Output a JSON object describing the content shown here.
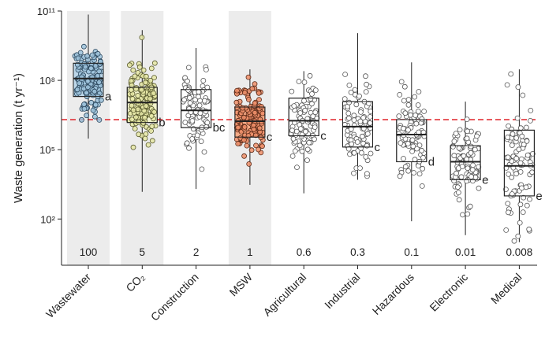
{
  "chart_data": {
    "type": "box",
    "ylabel": "Waste generation (t yr⁻¹)",
    "yscale": "log",
    "ylim": [
      1,
      100000000000
    ],
    "yticks": [
      {
        "value": 100,
        "label": "10²"
      },
      {
        "value": 100000,
        "label": "10⁵"
      },
      {
        "value": 100000000,
        "label": "10⁸"
      },
      {
        "value": 100000000000,
        "label": "10¹¹"
      }
    ],
    "reference_line": {
      "value": 2000000,
      "color": "#e0232a",
      "style": "dashed"
    },
    "categories": [
      {
        "label": "Wastewater",
        "ratio": "100",
        "letter": "a",
        "shaded": true,
        "fill": "#9ec3dc",
        "box_fill": "#bcd6e8",
        "edge": "#2e4a60",
        "filled_points": true,
        "whisker_low": 300000,
        "q1": 20000000,
        "median": 120000000,
        "q3": 550000000,
        "whisker_high": 70000000000
      },
      {
        "label": "CO₂",
        "ratio": "5",
        "letter": "b",
        "shaded": true,
        "fill": "#e6e8a6",
        "box_fill": "#f2f3cc",
        "edge": "#5a5b30",
        "filled_points": true,
        "whisker_low": 1500,
        "q1": 1500000,
        "median": 11000000,
        "q3": 50000000,
        "whisker_high": 15000000000
      },
      {
        "label": "Construction",
        "ratio": "2",
        "letter": "bc",
        "shaded": false,
        "fill": "#ffffff",
        "box_fill": "#ffffff",
        "edge": "#333333",
        "filled_points": false,
        "whisker_low": 2000,
        "q1": 900000,
        "median": 5000000,
        "q3": 40000000,
        "whisker_high": 2500000000
      },
      {
        "label": "MSW",
        "ratio": "1",
        "letter": "c",
        "shaded": true,
        "fill": "#ef8f6a",
        "box_fill": "#f4a985",
        "edge": "#5a2a18",
        "filled_points": true,
        "whisker_low": 3000,
        "q1": 350000,
        "median": 1700000,
        "q3": 7000000,
        "whisker_high": 300000000
      },
      {
        "label": "Agricultural",
        "ratio": "0.6",
        "letter": "c",
        "shaded": false,
        "fill": "#ffffff",
        "box_fill": "#ffffff",
        "edge": "#333333",
        "filled_points": false,
        "whisker_low": 1300,
        "q1": 400000,
        "median": 1800000,
        "q3": 17000000,
        "whisker_high": 250000000
      },
      {
        "label": "Industrial",
        "ratio": "0.3",
        "letter": "c",
        "shaded": false,
        "fill": "#ffffff",
        "box_fill": "#ffffff",
        "edge": "#333333",
        "filled_points": false,
        "whisker_low": 5000,
        "q1": 130000,
        "median": 1000000,
        "q3": 12000000,
        "whisker_high": 11000000000
      },
      {
        "label": "Hazardous",
        "ratio": "0.1",
        "letter": "d",
        "shaded": false,
        "fill": "#ffffff",
        "box_fill": "#ffffff",
        "edge": "#333333",
        "filled_points": false,
        "whisker_low": 80,
        "q1": 30000,
        "median": 450000,
        "q3": 2000000,
        "whisker_high": 600000000
      },
      {
        "label": "Electronic",
        "ratio": "0.01",
        "letter": "e",
        "shaded": false,
        "fill": "#ffffff",
        "box_fill": "#ffffff",
        "edge": "#333333",
        "filled_points": false,
        "whisker_low": 20,
        "q1": 5000,
        "median": 30000,
        "q3": 150000,
        "whisker_high": 12000000
      },
      {
        "label": "Medical",
        "ratio": "0.008",
        "letter": "e",
        "shaded": false,
        "fill": "#ffffff",
        "box_fill": "#ffffff",
        "edge": "#333333",
        "filled_points": false,
        "whisker_low": 10,
        "q1": 1000,
        "median": 20000,
        "q3": 700000,
        "whisker_high": 300000000
      }
    ]
  }
}
